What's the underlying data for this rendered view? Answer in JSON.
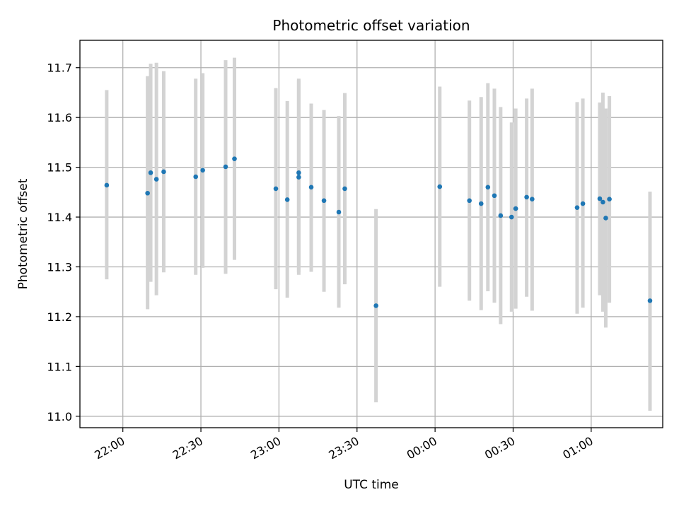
{
  "chart_data": {
    "type": "scatter",
    "title": "Photometric offset variation",
    "xlabel": "UTC time",
    "ylabel": "Photometric offset",
    "x_ticks": [
      "22:00",
      "22:30",
      "23:00",
      "23:30",
      "00:00",
      "00:30",
      "01:00"
    ],
    "x_tick_minutes": [
      0,
      30,
      60,
      90,
      120,
      150,
      180
    ],
    "xlim_minutes": [
      -16.5,
      207.5
    ],
    "y_ticks": [
      "11.0",
      "11.1",
      "11.2",
      "11.3",
      "11.4",
      "11.5",
      "11.6",
      "11.7"
    ],
    "ylim": [
      10.977,
      11.755
    ],
    "grid": true,
    "x_units": "minutes after 22:00 UTC",
    "point_color": "#1f77b4",
    "errorbar_color": "#d3d3d3",
    "points": [
      {
        "x": -6.2,
        "y": 11.464,
        "ylo": 11.275,
        "yhi": 11.655
      },
      {
        "x": 9.5,
        "y": 11.448,
        "ylo": 11.215,
        "yhi": 11.683
      },
      {
        "x": 10.7,
        "y": 11.489,
        "ylo": 11.27,
        "yhi": 11.708
      },
      {
        "x": 12.9,
        "y": 11.476,
        "ylo": 11.243,
        "yhi": 11.71
      },
      {
        "x": 15.7,
        "y": 11.491,
        "ylo": 11.289,
        "yhi": 11.693
      },
      {
        "x": 28.0,
        "y": 11.481,
        "ylo": 11.284,
        "yhi": 11.678
      },
      {
        "x": 30.7,
        "y": 11.494,
        "ylo": 11.298,
        "yhi": 11.689
      },
      {
        "x": 39.5,
        "y": 11.501,
        "ylo": 11.286,
        "yhi": 11.715
      },
      {
        "x": 42.9,
        "y": 11.517,
        "ylo": 11.314,
        "yhi": 11.72
      },
      {
        "x": 58.8,
        "y": 11.457,
        "ylo": 11.255,
        "yhi": 11.659
      },
      {
        "x": 63.2,
        "y": 11.435,
        "ylo": 11.238,
        "yhi": 11.633
      },
      {
        "x": 67.6,
        "y": 11.48,
        "ylo": 11.284,
        "yhi": 11.678
      },
      {
        "x": 67.6,
        "y": 11.489,
        "ylo": 11.289,
        "yhi": 11.675
      },
      {
        "x": 72.4,
        "y": 11.46,
        "ylo": 11.29,
        "yhi": 11.628
      },
      {
        "x": 77.3,
        "y": 11.433,
        "ylo": 11.25,
        "yhi": 11.615
      },
      {
        "x": 83.0,
        "y": 11.41,
        "ylo": 11.218,
        "yhi": 11.603
      },
      {
        "x": 85.3,
        "y": 11.457,
        "ylo": 11.265,
        "yhi": 11.649
      },
      {
        "x": 97.3,
        "y": 11.222,
        "ylo": 11.028,
        "yhi": 11.416
      },
      {
        "x": 121.8,
        "y": 11.461,
        "ylo": 11.26,
        "yhi": 11.662
      },
      {
        "x": 133.2,
        "y": 11.433,
        "ylo": 11.232,
        "yhi": 11.634
      },
      {
        "x": 137.7,
        "y": 11.427,
        "ylo": 11.213,
        "yhi": 11.641
      },
      {
        "x": 140.3,
        "y": 11.46,
        "ylo": 11.251,
        "yhi": 11.669
      },
      {
        "x": 142.8,
        "y": 11.443,
        "ylo": 11.228,
        "yhi": 11.658
      },
      {
        "x": 145.2,
        "y": 11.403,
        "ylo": 11.185,
        "yhi": 11.621
      },
      {
        "x": 149.4,
        "y": 11.4,
        "ylo": 11.21,
        "yhi": 11.59
      },
      {
        "x": 151.0,
        "y": 11.417,
        "ylo": 11.216,
        "yhi": 11.618
      },
      {
        "x": 155.2,
        "y": 11.44,
        "ylo": 11.24,
        "yhi": 11.638
      },
      {
        "x": 157.3,
        "y": 11.436,
        "ylo": 11.212,
        "yhi": 11.658
      },
      {
        "x": 174.6,
        "y": 11.419,
        "ylo": 11.206,
        "yhi": 11.631
      },
      {
        "x": 176.8,
        "y": 11.427,
        "ylo": 11.218,
        "yhi": 11.638
      },
      {
        "x": 183.3,
        "y": 11.437,
        "ylo": 11.243,
        "yhi": 11.63
      },
      {
        "x": 184.5,
        "y": 11.43,
        "ylo": 11.21,
        "yhi": 11.65
      },
      {
        "x": 185.6,
        "y": 11.398,
        "ylo": 11.178,
        "yhi": 11.618
      },
      {
        "x": 187.0,
        "y": 11.436,
        "ylo": 11.228,
        "yhi": 11.643
      },
      {
        "x": 202.6,
        "y": 11.232,
        "ylo": 11.011,
        "yhi": 11.451
      }
    ]
  }
}
